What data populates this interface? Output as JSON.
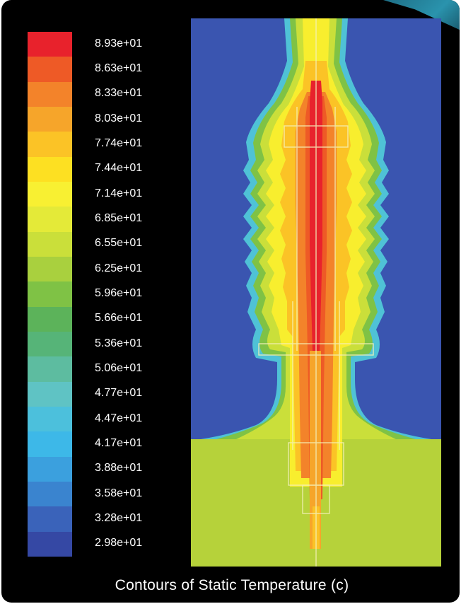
{
  "caption": "Contours of Static Temperature (c)",
  "chart_data": {
    "type": "contour",
    "quantity": "Static Temperature",
    "unit": "c",
    "min": 29.8,
    "max": 89.3,
    "levels": [
      {
        "label": "8.93e+01",
        "value": 89.3,
        "color": "#e8222c"
      },
      {
        "label": "8.63e+01",
        "value": 86.3,
        "color": "#ee5a26"
      },
      {
        "label": "8.33e+01",
        "value": 83.3,
        "color": "#f3832a"
      },
      {
        "label": "8.03e+01",
        "value": 80.3,
        "color": "#f6a52a"
      },
      {
        "label": "7.74e+01",
        "value": 77.4,
        "color": "#fbc326"
      },
      {
        "label": "7.44e+01",
        "value": 74.4,
        "color": "#fde022"
      },
      {
        "label": "7.14e+01",
        "value": 71.4,
        "color": "#f8f032"
      },
      {
        "label": "6.85e+01",
        "value": 68.5,
        "color": "#e4ea38"
      },
      {
        "label": "6.55e+01",
        "value": 65.5,
        "color": "#cadf3a"
      },
      {
        "label": "6.25e+01",
        "value": 62.5,
        "color": "#a9d03e"
      },
      {
        "label": "5.96e+01",
        "value": 59.6,
        "color": "#7fc245"
      },
      {
        "label": "5.66e+01",
        "value": 56.6,
        "color": "#5cb35a"
      },
      {
        "label": "5.36e+01",
        "value": 53.6,
        "color": "#56b478"
      },
      {
        "label": "5.06e+01",
        "value": 50.6,
        "color": "#5dbca0"
      },
      {
        "label": "4.77e+01",
        "value": 47.7,
        "color": "#5fc3c4"
      },
      {
        "label": "4.47e+01",
        "value": 44.7,
        "color": "#4cc0dc"
      },
      {
        "label": "4.17e+01",
        "value": 41.7,
        "color": "#3db8e8"
      },
      {
        "label": "3.88e+01",
        "value": 38.8,
        "color": "#3ba0de"
      },
      {
        "label": "3.58e+01",
        "value": 35.8,
        "color": "#3a84cf"
      },
      {
        "label": "3.28e+01",
        "value": 32.8,
        "color": "#3a63ba"
      },
      {
        "label": "2.98e+01",
        "value": 29.8,
        "color": "#3548a4"
      }
    ],
    "background_color": "#3a55b0",
    "base_color": "#b6d23a"
  }
}
